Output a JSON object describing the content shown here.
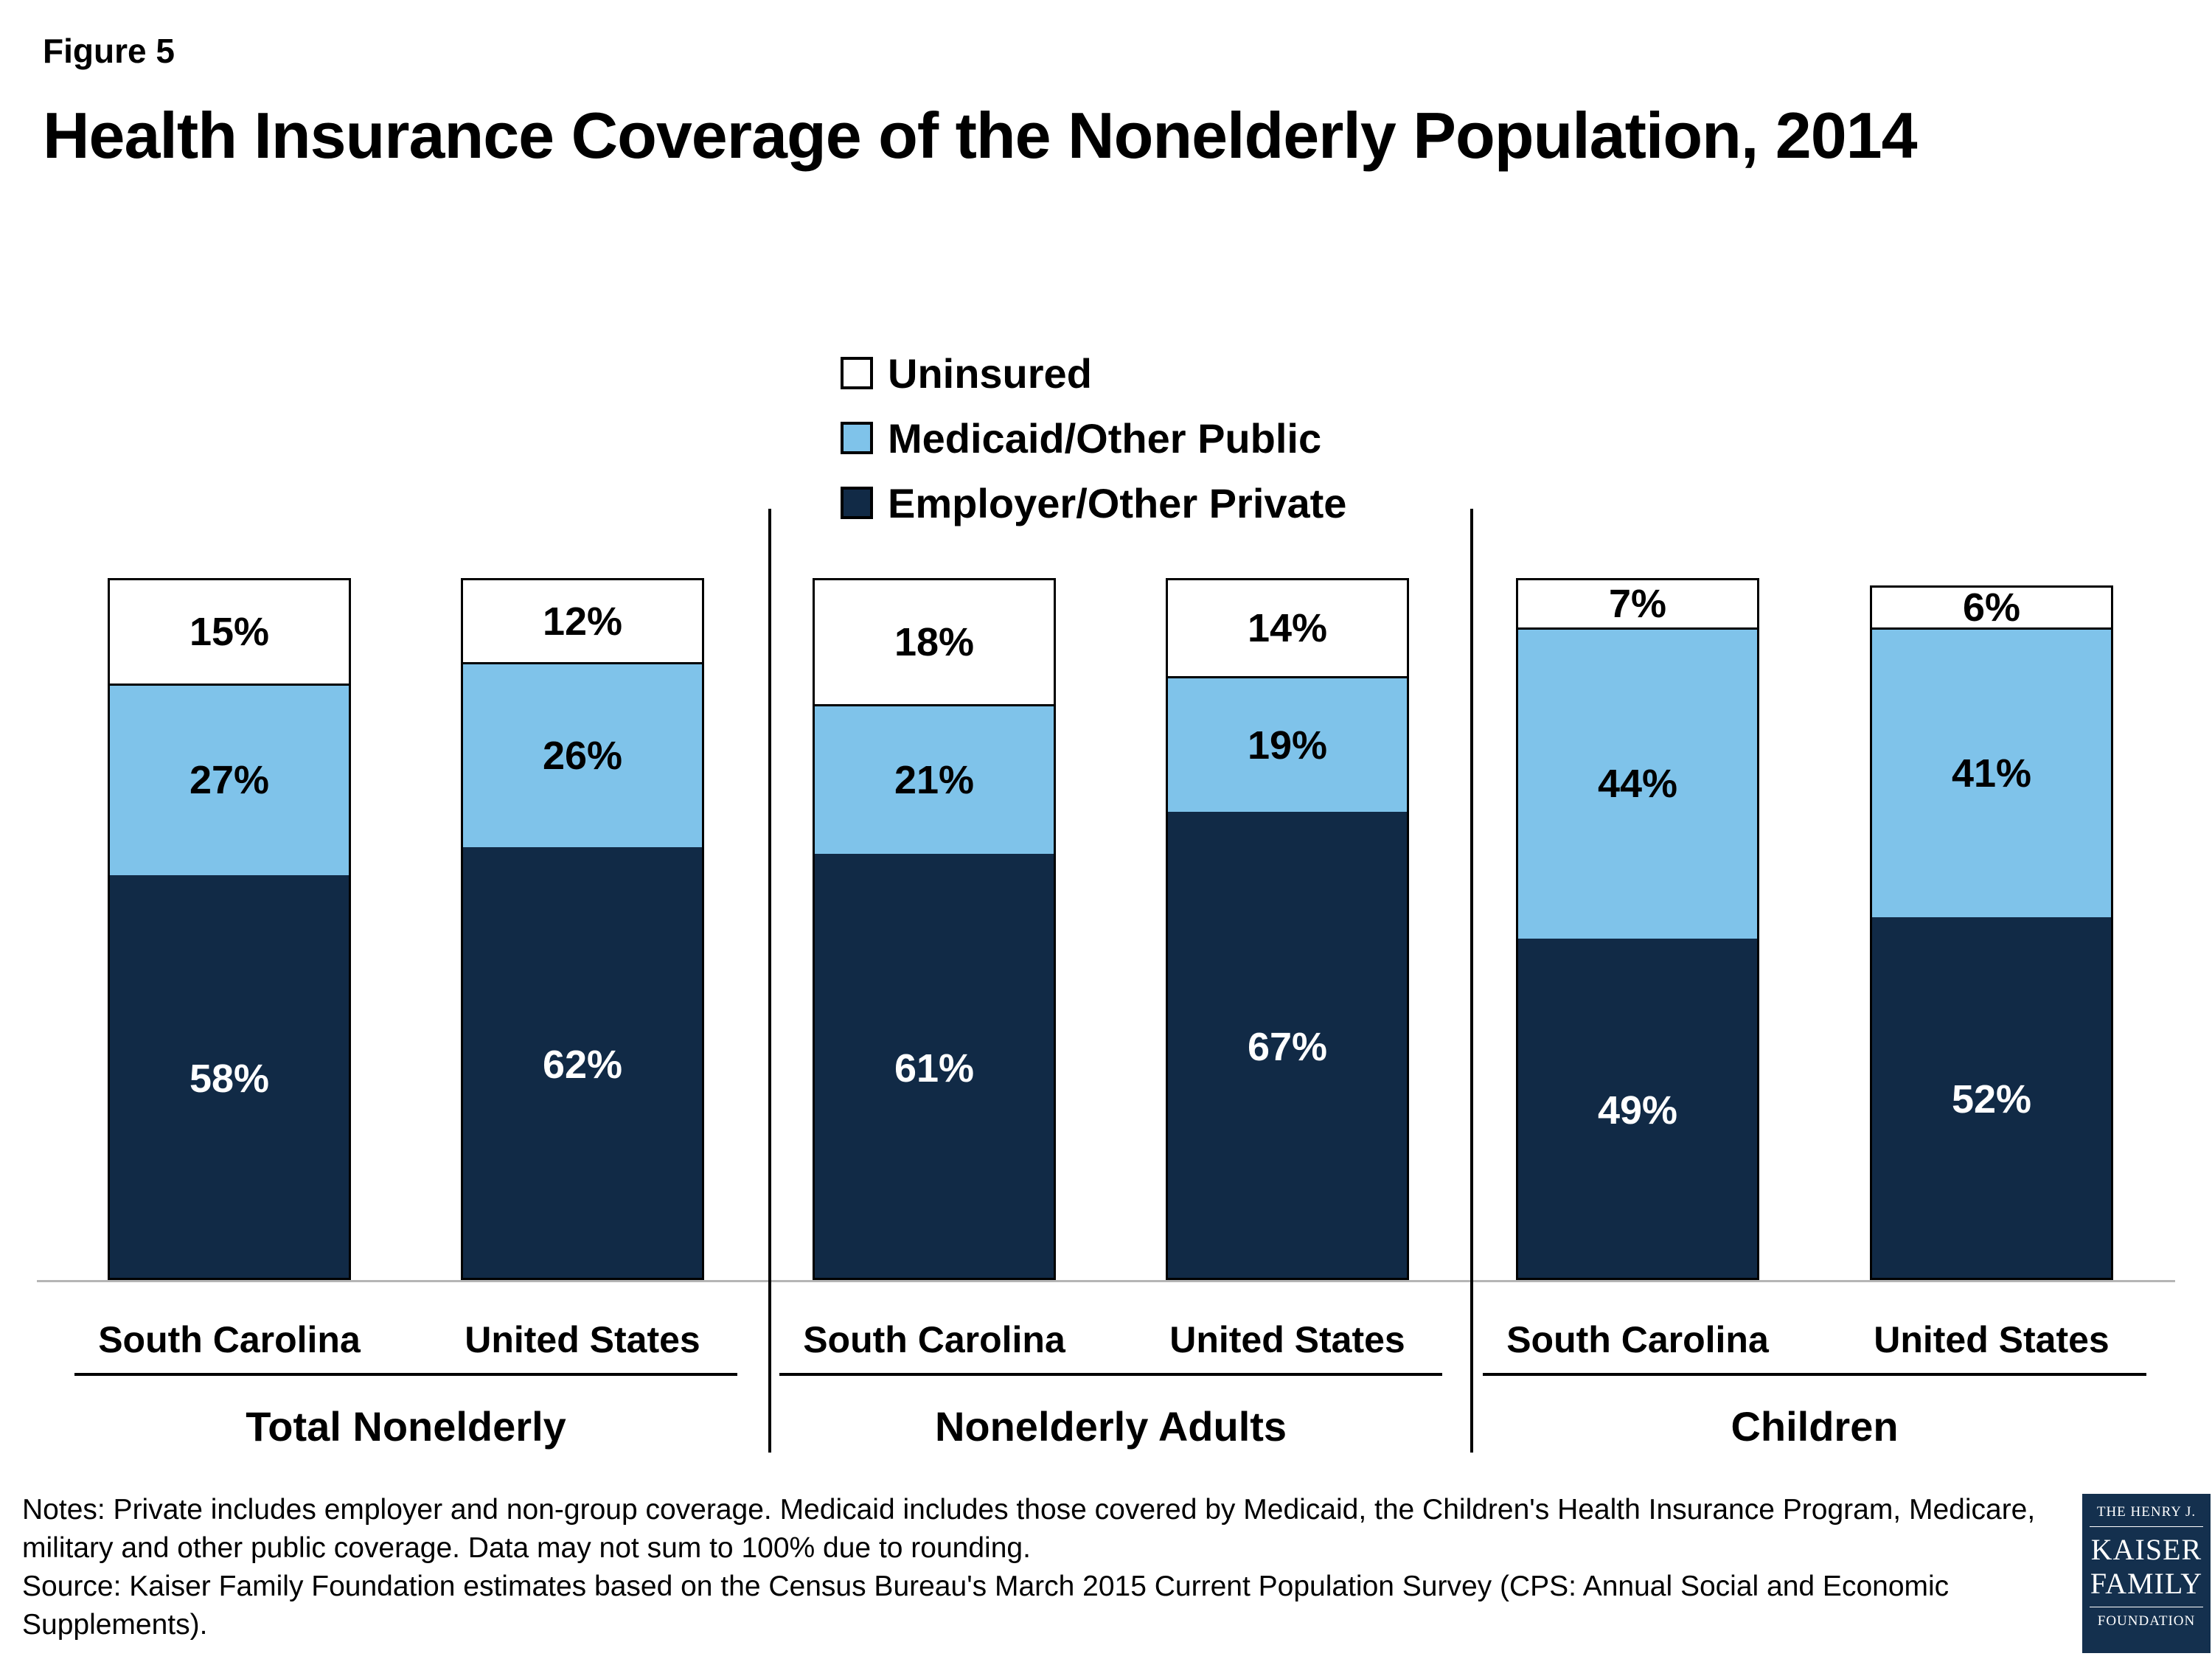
{
  "figure_label": "Figure 5",
  "title": "Health Insurance Coverage of the Nonelderly Population, 2014",
  "legend": [
    {
      "key": "uninsured",
      "label": "Uninsured",
      "color": "#ffffff"
    },
    {
      "key": "medicaid",
      "label": "Medicaid/Other Public",
      "color": "#7fc3ea"
    },
    {
      "key": "employer",
      "label": "Employer/Other Private",
      "color": "#112a46"
    }
  ],
  "colors": {
    "uninsured": "#ffffff",
    "medicaid": "#7fc3ea",
    "employer": "#112a46",
    "uninsured_text": "#000000",
    "medicaid_text": "#000000",
    "employer_text": "#ffffff"
  },
  "chart_data": {
    "type": "bar",
    "stacked": true,
    "ylim": [
      0,
      100
    ],
    "unit": "percent",
    "series_order_bottom_to_top": [
      "employer",
      "medicaid",
      "uninsured"
    ],
    "groups": [
      {
        "label": "Total Nonelderly",
        "bars": [
          {
            "category": "South Carolina",
            "employer": 58,
            "medicaid": 27,
            "uninsured": 15
          },
          {
            "category": "United States",
            "employer": 62,
            "medicaid": 26,
            "uninsured": 12
          }
        ]
      },
      {
        "label": "Nonelderly Adults",
        "bars": [
          {
            "category": "South Carolina",
            "employer": 61,
            "medicaid": 21,
            "uninsured": 18
          },
          {
            "category": "United States",
            "employer": 67,
            "medicaid": 19,
            "uninsured": 14
          }
        ]
      },
      {
        "label": "Children",
        "bars": [
          {
            "category": "South Carolina",
            "employer": 49,
            "medicaid": 44,
            "uninsured": 7
          },
          {
            "category": "United States",
            "employer": 52,
            "medicaid": 41,
            "uninsured": 6
          }
        ]
      }
    ]
  },
  "notes": "Notes: Private includes employer and non-group coverage. Medicaid includes those covered by Medicaid, the Children's Health Insurance Program, Medicare, military and other public coverage. Data may not sum to 100% due to rounding.",
  "source": "Source: Kaiser Family Foundation estimates based on the Census Bureau's March 2015 Current Population Survey (CPS: Annual Social and Economic Supplements).",
  "logo": {
    "line1": "THE HENRY J.",
    "line2": "KAISER",
    "line3": "FAMILY",
    "line4": "FOUNDATION"
  }
}
